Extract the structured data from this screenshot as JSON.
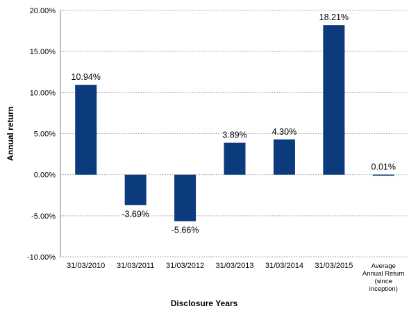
{
  "chart_data": {
    "type": "bar",
    "categories": [
      "31/03/2010",
      "31/03/2011",
      "31/03/2012",
      "31/03/2013",
      "31/03/2014",
      "31/03/2015",
      "Average Annual Return (since inception)"
    ],
    "category_lines": [
      [
        "31/03/2010"
      ],
      [
        "31/03/2011"
      ],
      [
        "31/03/2012"
      ],
      [
        "31/03/2013"
      ],
      [
        "31/03/2014"
      ],
      [
        "31/03/2015"
      ],
      [
        "Average",
        "Annual Return",
        "(since",
        "inception)"
      ]
    ],
    "values": [
      10.94,
      -3.69,
      -5.66,
      3.89,
      4.3,
      18.21,
      0.01
    ],
    "data_labels": [
      "10.94%",
      "-3.69%",
      "-5.66%",
      "3.89%",
      "4.30%",
      "18.21%",
      "0.01%"
    ],
    "yticks": [
      20,
      15,
      10,
      5,
      0,
      -5,
      -10
    ],
    "ytick_labels": [
      "20.00%",
      "15.00%",
      "10.00%",
      "5.00%",
      "0.00%",
      "-5.00%",
      "-10.00%"
    ],
    "ylim": [
      -10,
      20
    ],
    "xlabel": "Disclosure Years",
    "ylabel": "Annual return",
    "grid": true,
    "bar_color": "#0b3b7d"
  }
}
